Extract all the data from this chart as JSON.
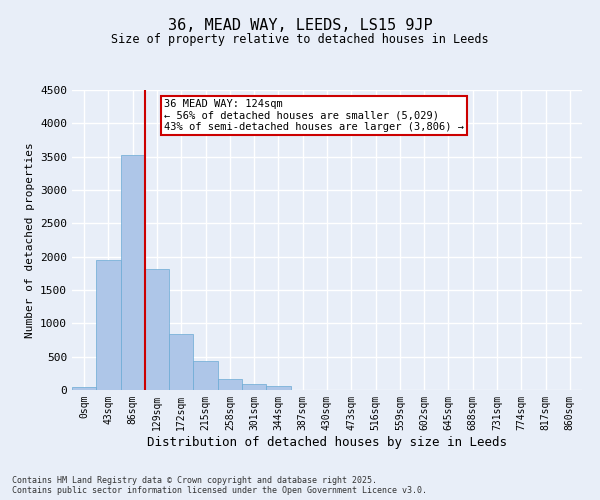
{
  "title_line1": "36, MEAD WAY, LEEDS, LS15 9JP",
  "title_line2": "Size of property relative to detached houses in Leeds",
  "xlabel": "Distribution of detached houses by size in Leeds",
  "ylabel": "Number of detached properties",
  "bar_labels": [
    "0sqm",
    "43sqm",
    "86sqm",
    "129sqm",
    "172sqm",
    "215sqm",
    "258sqm",
    "301sqm",
    "344sqm",
    "387sqm",
    "430sqm",
    "473sqm",
    "516sqm",
    "559sqm",
    "602sqm",
    "645sqm",
    "688sqm",
    "731sqm",
    "774sqm",
    "817sqm",
    "860sqm"
  ],
  "bar_values": [
    50,
    1950,
    3520,
    1820,
    840,
    430,
    160,
    90,
    55,
    0,
    0,
    0,
    0,
    0,
    0,
    0,
    0,
    0,
    0,
    0,
    0
  ],
  "bar_color": "#aec6e8",
  "bar_edge_color": "#6aaad4",
  "vline_color": "#cc0000",
  "ylim": [
    0,
    4500
  ],
  "yticks": [
    0,
    500,
    1000,
    1500,
    2000,
    2500,
    3000,
    3500,
    4000,
    4500
  ],
  "annotation_text": "36 MEAD WAY: 124sqm\n← 56% of detached houses are smaller (5,029)\n43% of semi-detached houses are larger (3,806) →",
  "annotation_box_color": "#ffffff",
  "annotation_box_edge": "#cc0000",
  "background_color": "#e8eef8",
  "grid_color": "#ffffff",
  "footnote": "Contains HM Land Registry data © Crown copyright and database right 2025.\nContains public sector information licensed under the Open Government Licence v3.0."
}
